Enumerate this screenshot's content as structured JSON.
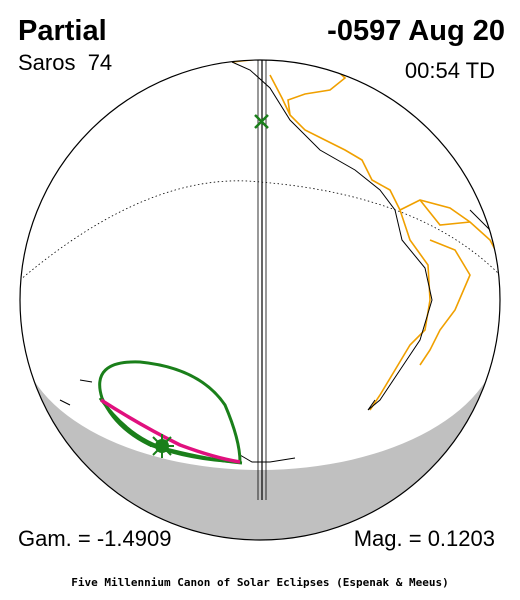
{
  "header": {
    "title": "Partial",
    "date": "-0597 Aug 20",
    "saros": "Saros  74",
    "time": "00:54 TD"
  },
  "footer": {
    "gamma": "Gam. = -1.4909",
    "magnitude": "Mag. = 0.1203",
    "credit": "Five Millennium Canon of Solar Eclipses (Espenak & Meeus)"
  }
}
